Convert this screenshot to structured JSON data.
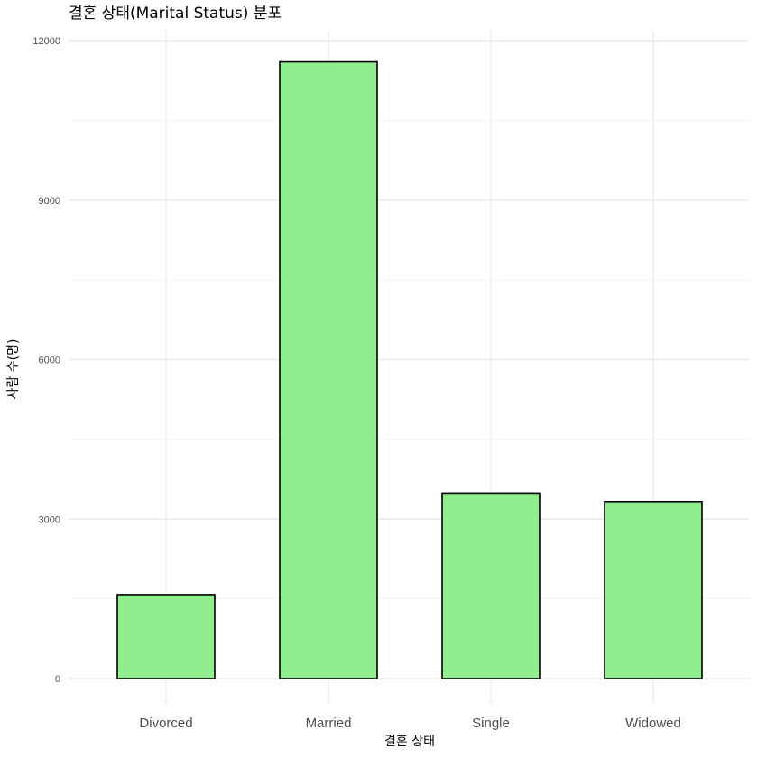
{
  "chart_data": {
    "type": "bar",
    "title": "결혼 상태(Marital Status) 분포",
    "xlabel": "결혼 상태",
    "ylabel": "사람 수(명)",
    "categories": [
      "Divorced",
      "Married",
      "Single",
      "Widowed"
    ],
    "values": [
      1580,
      11600,
      3490,
      3330
    ],
    "ylim": [
      0,
      12000
    ],
    "yticks": [
      0,
      3000,
      6000,
      9000,
      12000
    ],
    "ytick_labels": [
      "0",
      "3000",
      "6000",
      "9000",
      "12000"
    ],
    "grid": true,
    "legend": "none",
    "colors": {
      "bar_fill": "#90ee8f",
      "bar_outline": "#000000",
      "grid": "#ebebeb"
    }
  }
}
